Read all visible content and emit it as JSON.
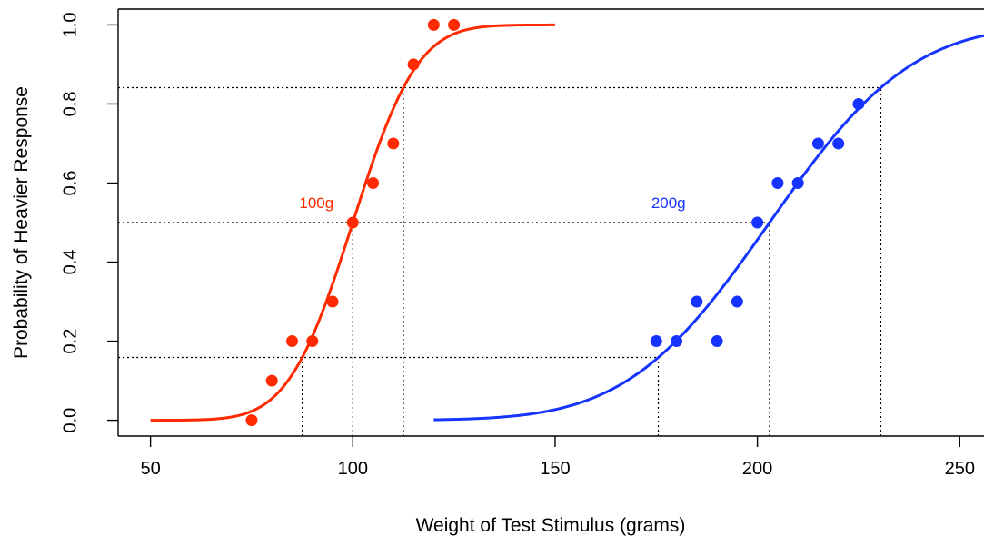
{
  "chart_data": {
    "type": "scatter",
    "title": "",
    "xlabel": "Weight of Test Stimulus (grams)",
    "ylabel": "Probability of Heavier Response",
    "xlim": [
      42,
      256
    ],
    "ylim": [
      -0.04,
      1.04
    ],
    "x_ticks": [
      50,
      100,
      150,
      200,
      250
    ],
    "y_ticks": [
      0.0,
      0.2,
      0.4,
      0.6,
      0.8,
      1.0
    ],
    "x_tick_labels": [
      "50",
      "100",
      "150",
      "200",
      "250"
    ],
    "y_tick_labels": [
      "0.0",
      "0.2",
      "0.4",
      "0.6",
      "0.8",
      "1.0"
    ],
    "grid": false,
    "series": [
      {
        "name": "100g",
        "color": "#ff2a00",
        "points": [
          {
            "x": 75,
            "y": 0.0
          },
          {
            "x": 80,
            "y": 0.1
          },
          {
            "x": 85,
            "y": 0.2
          },
          {
            "x": 90,
            "y": 0.2
          },
          {
            "x": 95,
            "y": 0.3
          },
          {
            "x": 100,
            "y": 0.5
          },
          {
            "x": 105,
            "y": 0.6
          },
          {
            "x": 110,
            "y": 0.7
          },
          {
            "x": 115,
            "y": 0.9
          },
          {
            "x": 120,
            "y": 1.0
          },
          {
            "x": 125,
            "y": 1.0
          }
        ],
        "fit": {
          "model": "normal_cdf",
          "mean": 100,
          "sd": 12.5,
          "x_from": 50,
          "x_to": 150
        },
        "label_position": {
          "x": 98,
          "y": 0.55
        },
        "reference_x": [
          87.5,
          100,
          112.5
        ]
      },
      {
        "name": "200g",
        "color": "#1634ff",
        "points": [
          {
            "x": 175,
            "y": 0.2
          },
          {
            "x": 180,
            "y": 0.2
          },
          {
            "x": 185,
            "y": 0.3
          },
          {
            "x": 190,
            "y": 0.2
          },
          {
            "x": 195,
            "y": 0.3
          },
          {
            "x": 200,
            "y": 0.5
          },
          {
            "x": 205,
            "y": 0.6
          },
          {
            "x": 210,
            "y": 0.6
          },
          {
            "x": 215,
            "y": 0.7
          },
          {
            "x": 220,
            "y": 0.7
          },
          {
            "x": 225,
            "y": 0.8
          }
        ],
        "fit": {
          "model": "normal_cdf",
          "mean": 203,
          "sd": 27.5,
          "x_from": 120,
          "x_to": 256
        },
        "label_position": {
          "x": 185,
          "y": 0.55
        },
        "reference_x": [
          175.5,
          203,
          230.5
        ]
      }
    ],
    "reference_lines": {
      "style": "dotted",
      "horizontal_y": [
        0.1587,
        0.5,
        0.8413
      ]
    }
  }
}
